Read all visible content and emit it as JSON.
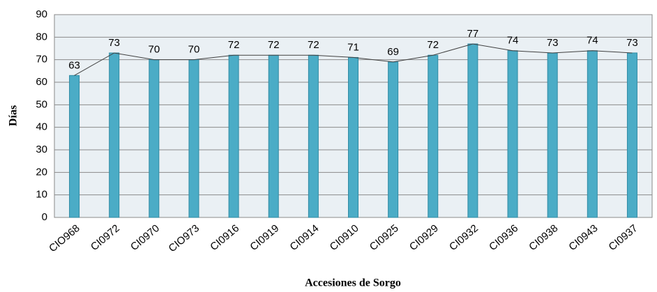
{
  "chart_data": {
    "type": "bar",
    "x_label": "Accesiones de Sorgo",
    "y_label": "Días",
    "categories": [
      "CIO968",
      "CI0972",
      "CI0970",
      "CIO973",
      "CI0916",
      "CI0919",
      "CI0914",
      "CI0910",
      "CI0925",
      "CI0929",
      "CI0932",
      "CI0936",
      "CI0938",
      "CI0943",
      "CI0937"
    ],
    "values": [
      63,
      73,
      70,
      70,
      72,
      72,
      72,
      71,
      69,
      72,
      77,
      74,
      73,
      74,
      73
    ],
    "color": "#4bacc6",
    "line_color": "#404040",
    "connect_tops": true,
    "data_labels": true,
    "ylim": [
      0,
      90
    ],
    "yticks": [
      0,
      10,
      20,
      30,
      40,
      50,
      60,
      70,
      80,
      90
    ],
    "grid": true
  }
}
